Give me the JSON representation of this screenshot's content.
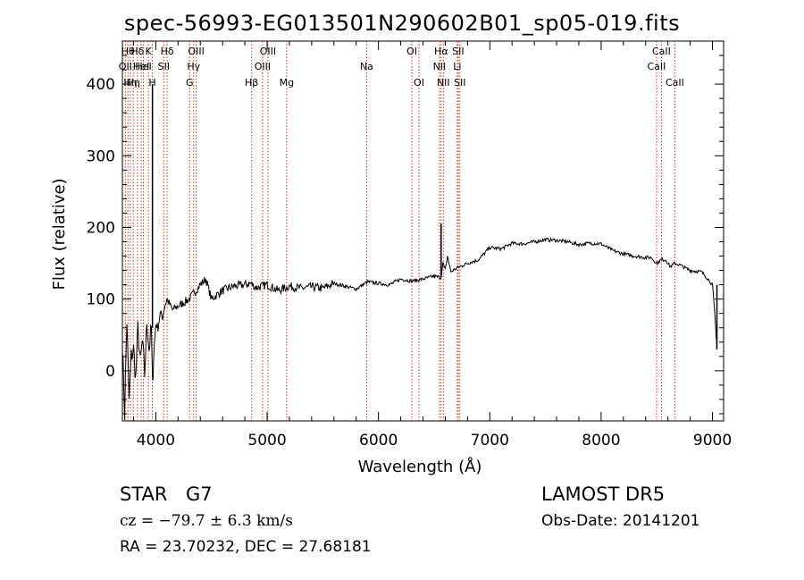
{
  "chart_data": {
    "type": "line",
    "title": "spec-56993-EG013501N290602B01_sp05-019.fits",
    "xlabel": "Wavelength (Å)",
    "ylabel": "Flux (relative)",
    "xlim": [
      3700,
      9100
    ],
    "ylim": [
      -70,
      460
    ],
    "xticks": [
      4000,
      5000,
      6000,
      7000,
      8000,
      9000
    ],
    "yticks": [
      0,
      100,
      200,
      300,
      400
    ],
    "grid": false,
    "series": [
      {
        "x": [
          3700,
          3720,
          3740,
          3760,
          3780,
          3800,
          3820,
          3840,
          3860,
          3880,
          3900,
          3920,
          3940,
          3960,
          3970,
          3980,
          4000,
          4020,
          4040,
          4060,
          4080,
          4100,
          4150,
          4200,
          4250,
          4300,
          4350,
          4400,
          4450,
          4500,
          4600,
          4700,
          4800,
          4850,
          4900,
          5000,
          5100,
          5200,
          5300,
          5400,
          5500,
          5600,
          5700,
          5800,
          5900,
          6000,
          6100,
          6200,
          6300,
          6400,
          6500,
          6560,
          6580,
          6600,
          6620,
          6650,
          6700,
          6800,
          6900,
          7000,
          7100,
          7200,
          7300,
          7400,
          7500,
          7600,
          7700,
          7800,
          7900,
          8000,
          8100,
          8200,
          8300,
          8400,
          8450,
          8500,
          8540,
          8580,
          8620,
          8662,
          8700,
          8800,
          8900,
          8950,
          9000,
          9020,
          9040
        ],
        "y": [
          40,
          -60,
          70,
          -40,
          20,
          30,
          -10,
          60,
          10,
          40,
          -5,
          70,
          30,
          60,
          -20,
          20,
          65,
          60,
          80,
          75,
          90,
          100,
          85,
          90,
          95,
          100,
          110,
          120,
          128,
          100,
          112,
          118,
          120,
          122,
          116,
          120,
          112,
          118,
          115,
          117,
          115,
          122,
          118,
          114,
          124,
          122,
          120,
          128,
          125,
          128,
          132,
          130,
          150,
          140,
          160,
          138,
          143,
          150,
          155,
          172,
          170,
          178,
          177,
          180,
          183,
          182,
          180,
          176,
          178,
          177,
          168,
          163,
          160,
          158,
          158,
          150,
          155,
          155,
          145,
          150,
          148,
          140,
          138,
          130,
          120,
          80,
          30
        ]
      }
    ],
    "lines": [
      {
        "wl": 3727,
        "label": "OII",
        "row": 1
      },
      {
        "wl": 3750,
        "label": "Hθ",
        "row": 0
      },
      {
        "wl": 3771,
        "label": "Hη",
        "row": 2
      },
      {
        "wl": 3798,
        "label": "Hη",
        "row": 2
      },
      {
        "wl": 3835,
        "label": "Hδ",
        "row": 0
      },
      {
        "wl": 3869,
        "label": "HeI",
        "row": 1
      },
      {
        "wl": 3889,
        "label": "HeI",
        "row": 1
      },
      {
        "wl": 3934,
        "label": "K",
        "row": 0
      },
      {
        "wl": 3969,
        "label": "H",
        "row": 2
      },
      {
        "wl": 4072,
        "label": "SII",
        "row": 1
      },
      {
        "wl": 4102,
        "label": "Hδ",
        "row": 0
      },
      {
        "wl": 4304,
        "label": "G",
        "row": 2
      },
      {
        "wl": 4340,
        "label": "Hγ",
        "row": 1
      },
      {
        "wl": 4363,
        "label": "OIII",
        "row": 0
      },
      {
        "wl": 4861,
        "label": "Hβ",
        "row": 2
      },
      {
        "wl": 4959,
        "label": "OIII",
        "row": 1
      },
      {
        "wl": 5007,
        "label": "OIII",
        "row": 0
      },
      {
        "wl": 5175,
        "label": "Mg",
        "row": 2
      },
      {
        "wl": 5894,
        "label": "Na",
        "row": 1
      },
      {
        "wl": 6300,
        "label": "OI",
        "row": 0
      },
      {
        "wl": 6364,
        "label": "OI",
        "row": 2
      },
      {
        "wl": 6548,
        "label": "NII",
        "row": 1
      },
      {
        "wl": 6563,
        "label": "Hα",
        "row": 0
      },
      {
        "wl": 6583,
        "label": "NII",
        "row": 2
      },
      {
        "wl": 6708,
        "label": "Li",
        "row": 1
      },
      {
        "wl": 6716,
        "label": "SII",
        "row": 0
      },
      {
        "wl": 6731,
        "label": "SII",
        "row": 2
      },
      {
        "wl": 8498,
        "label": "CaII",
        "row": 1
      },
      {
        "wl": 8542,
        "label": "CaII",
        "row": 0
      },
      {
        "wl": 8662,
        "label": "CaII",
        "row": 2
      }
    ],
    "colors": {
      "spectrum": "#000000",
      "lines": "#c0392b",
      "axes": "#000000"
    }
  },
  "info": {
    "object_class": "STAR",
    "subclass": "G7",
    "survey": "LAMOST DR5",
    "cz": "cz = −79.7 ± 6.3 km/s",
    "obs_date": "Obs-Date: 20141201",
    "coords": "RA =  23.70232, DEC =  27.68181"
  }
}
